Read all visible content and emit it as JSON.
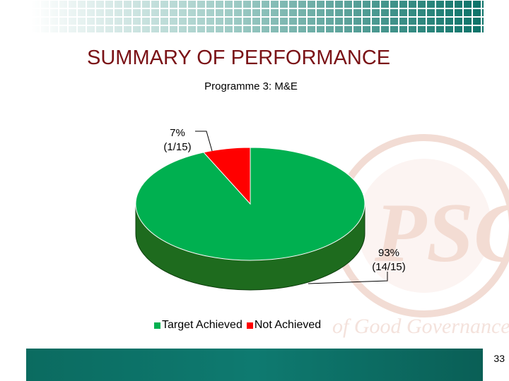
{
  "slide": {
    "title": "SUMMARY OF PERFORMANCE",
    "page_number": "33"
  },
  "colors": {
    "title": "#7a1216",
    "achieved": "#00b050",
    "achieved_side": "#1e6b1e",
    "not_achieved": "#ff0000",
    "band": "#0e7a70"
  },
  "chart_data": {
    "type": "pie",
    "title": "Programme 3: M&E",
    "categories": [
      "Target Achieved",
      "Not Achieved"
    ],
    "values": [
      14,
      1
    ],
    "total": 15,
    "data_labels": [
      {
        "line1": "93%",
        "line2": "(14/15)"
      },
      {
        "line1": "7%",
        "line2": "(1/15)"
      }
    ],
    "legend_position": "bottom",
    "three_d": true
  }
}
